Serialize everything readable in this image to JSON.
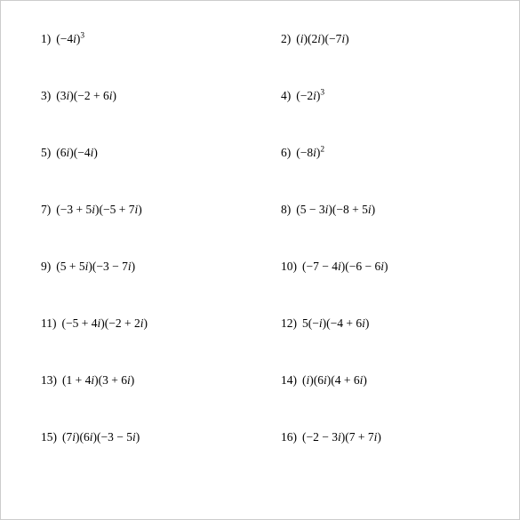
{
  "worksheet": {
    "font_family": "Times New Roman",
    "font_size_pt": 13.5,
    "text_color": "#000000",
    "background_color": "#ffffff",
    "problems": [
      {
        "n": "1)",
        "expr": "(−4<i>i</i>)<sup>3</sup>"
      },
      {
        "n": "2)",
        "expr": "(<i>i</i>)(2<i>i</i>)(−7<i>i</i>)"
      },
      {
        "n": "3)",
        "expr": "(3<i>i</i>)(−2 + 6<i>i</i>)"
      },
      {
        "n": "4)",
        "expr": "(−2<i>i</i>)<sup>3</sup>"
      },
      {
        "n": "5)",
        "expr": "(6<i>i</i>)(−4<i>i</i>)"
      },
      {
        "n": "6)",
        "expr": "(−8<i>i</i>)<sup>2</sup>"
      },
      {
        "n": "7)",
        "expr": "(−3 + 5<i>i</i>)(−5 + 7<i>i</i>)"
      },
      {
        "n": "8)",
        "expr": "(5 − 3<i>i</i>)(−8 + 5<i>i</i>)"
      },
      {
        "n": "9)",
        "expr": "(5 + 5<i>i</i>)(−3 − 7<i>i</i>)"
      },
      {
        "n": "10)",
        "expr": "(−7 − 4<i>i</i>)(−6 − 6<i>i</i>)"
      },
      {
        "n": "11)",
        "expr": "(−5 + 4<i>i</i>)(−2 + 2<i>i</i>)"
      },
      {
        "n": "12)",
        "expr": "5(−<i>i</i>)(−4 + 6<i>i</i>)"
      },
      {
        "n": "13)",
        "expr": "(1 + 4<i>i</i>)(3 + 6<i>i</i>)"
      },
      {
        "n": "14)",
        "expr": "(<i>i</i>)(6<i>i</i>)(4 + 6<i>i</i>)"
      },
      {
        "n": "15)",
        "expr": "(7<i>i</i>)(6<i>i</i>)(−3 − 5<i>i</i>)"
      },
      {
        "n": "16)",
        "expr": "(−2 − 3<i>i</i>)(7 + 7<i>i</i>)"
      }
    ]
  }
}
